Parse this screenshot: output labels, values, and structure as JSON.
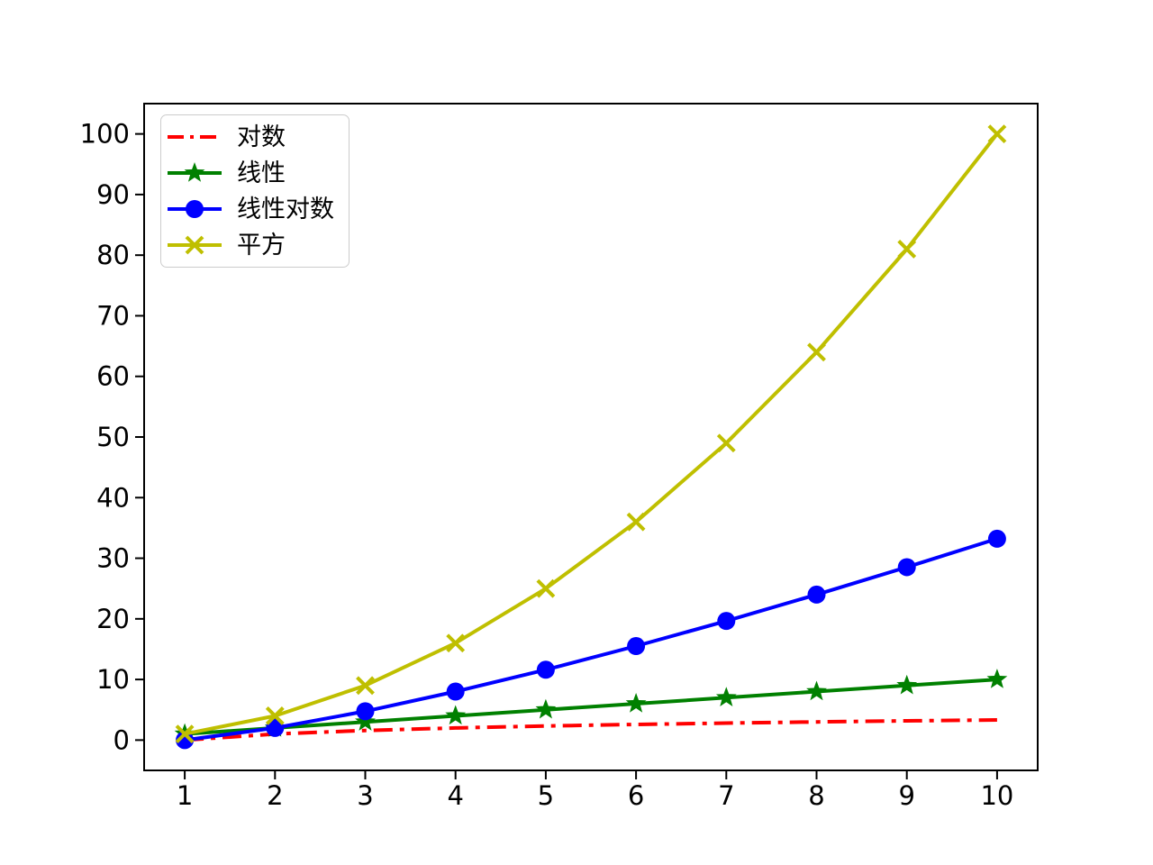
{
  "chart_data": {
    "type": "line",
    "title": "",
    "xlabel": "",
    "ylabel": "",
    "x": [
      1,
      2,
      3,
      4,
      5,
      6,
      7,
      8,
      9,
      10
    ],
    "series": [
      {
        "name": "对数",
        "color": "#ff0000",
        "linestyle": "dashdot",
        "marker": "none",
        "values": [
          0.0,
          1.0,
          1.585,
          2.0,
          2.322,
          2.585,
          2.807,
          3.0,
          3.17,
          3.322
        ]
      },
      {
        "name": "线性",
        "color": "#008000",
        "linestyle": "solid",
        "marker": "star",
        "values": [
          1,
          2,
          3,
          4,
          5,
          6,
          7,
          8,
          9,
          10
        ]
      },
      {
        "name": "线性对数",
        "color": "#0000ff",
        "linestyle": "solid",
        "marker": "circle",
        "values": [
          0.0,
          2.0,
          4.755,
          8.0,
          11.61,
          15.51,
          19.651,
          24.0,
          28.529,
          33.219
        ]
      },
      {
        "name": "平方",
        "color": "#bfbf00",
        "linestyle": "solid",
        "marker": "x",
        "values": [
          1,
          4,
          9,
          16,
          25,
          36,
          49,
          64,
          81,
          100
        ]
      }
    ],
    "xticks": [
      1,
      2,
      3,
      4,
      5,
      6,
      7,
      8,
      9,
      10
    ],
    "yticks": [
      0,
      10,
      20,
      30,
      40,
      50,
      60,
      70,
      80,
      90,
      100
    ],
    "xlim": [
      0.55,
      10.45
    ],
    "ylim": [
      -5,
      105
    ],
    "grid": false,
    "legend_position": "upper-left",
    "axis_color": "#000000",
    "background_color": "#ffffff"
  }
}
